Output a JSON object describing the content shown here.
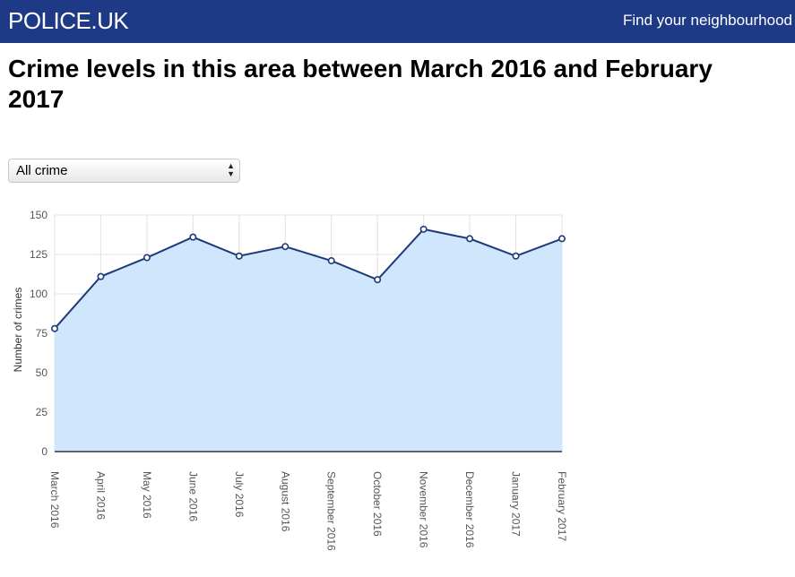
{
  "header": {
    "logo": "POLICE.UK",
    "nav_link": "Find your neighbourhood",
    "background": "#1e3a87"
  },
  "page": {
    "title": "Crime levels in this area between March 2016 and February 2017"
  },
  "crime_filter": {
    "selected": "All crime"
  },
  "chart_data": {
    "type": "area",
    "title": "",
    "xlabel": "",
    "ylabel": "Number of crimes",
    "ylim": [
      0,
      150
    ],
    "yticks": [
      0,
      25,
      50,
      75,
      100,
      125,
      150
    ],
    "categories": [
      "March 2016",
      "April 2016",
      "May 2016",
      "June 2016",
      "July 2016",
      "August 2016",
      "September 2016",
      "October 2016",
      "November 2016",
      "December 2016",
      "January 2017",
      "February 2017"
    ],
    "series": [
      {
        "values": [
          78,
          111,
          123,
          136,
          124,
          130,
          121,
          109,
          141,
          135,
          124,
          135
        ],
        "line_color": "#1f3a7a",
        "fill_color": "#d0e6fc"
      }
    ],
    "grid": true,
    "legend": "none"
  }
}
